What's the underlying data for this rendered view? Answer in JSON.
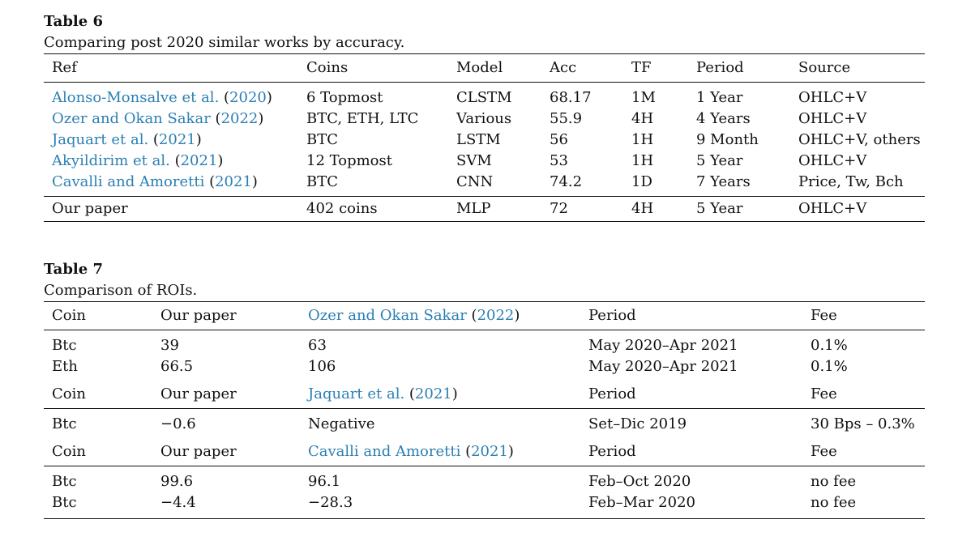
{
  "table6": {
    "label": "Table 6",
    "caption": "Comparing post 2020 similar works by accuracy.",
    "headers": [
      "Ref",
      "Coins",
      "Model",
      "Acc",
      "TF",
      "Period",
      "Source"
    ],
    "rows": [
      {
        "ref_authors": "Alonso-Monsalve et al.",
        "ref_year": "2020",
        "coins": "6 Topmost",
        "model": "CLSTM",
        "acc": "68.17",
        "tf": "1M",
        "period": "1 Year",
        "source": "OHLC+V"
      },
      {
        "ref_authors": "Ozer and Okan Sakar",
        "ref_year": "2022",
        "coins": "BTC, ETH, LTC",
        "model": "Various",
        "acc": "55.9",
        "tf": "4H",
        "period": "4 Years",
        "source": "OHLC+V"
      },
      {
        "ref_authors": "Jaquart et al.",
        "ref_year": "2021",
        "coins": "BTC",
        "model": "LSTM",
        "acc": "56",
        "tf": "1H",
        "period": "9 Month",
        "source": "OHLC+V, others"
      },
      {
        "ref_authors": "Akyildirim et al.",
        "ref_year": "2021",
        "coins": "12 Topmost",
        "model": "SVM",
        "acc": "53",
        "tf": "1H",
        "period": "5 Year",
        "source": "OHLC+V"
      },
      {
        "ref_authors": "Cavalli and Amoretti",
        "ref_year": "2021",
        "coins": "BTC",
        "model": "CNN",
        "acc": "74.2",
        "tf": "1D",
        "period": "7 Years",
        "source": "Price, Tw, Bch"
      }
    ],
    "ours": {
      "ref": "Our paper",
      "coins": "402 coins",
      "model": "MLP",
      "acc": "72",
      "tf": "4H",
      "period": "5 Year",
      "source": "OHLC+V"
    }
  },
  "table7": {
    "label": "Table 7",
    "caption": "Comparison of ROIs.",
    "groups": [
      {
        "header": {
          "coin": "Coin",
          "ours": "Our paper",
          "ref_authors": "Ozer and Okan Sakar",
          "ref_year": "2022",
          "period": "Period",
          "fee": "Fee"
        },
        "rows": [
          {
            "coin": "Btc",
            "ours": "39",
            "ref": "63",
            "period": "May 2020–Apr 2021",
            "fee": "0.1%"
          },
          {
            "coin": "Eth",
            "ours": "66.5",
            "ref": "106",
            "period": "May 2020–Apr 2021",
            "fee": "0.1%"
          }
        ]
      },
      {
        "header": {
          "coin": "Coin",
          "ours": "Our paper",
          "ref_authors": "Jaquart et al.",
          "ref_year": "2021",
          "period": "Period",
          "fee": "Fee"
        },
        "rows": [
          {
            "coin": "Btc",
            "ours": "−0.6",
            "ref": "Negative",
            "period": "Set–Dic 2019",
            "fee": "30 Bps – 0.3%"
          }
        ]
      },
      {
        "header": {
          "coin": "Coin",
          "ours": "Our paper",
          "ref_authors": "Cavalli and Amoretti",
          "ref_year": "2021",
          "period": "Period",
          "fee": "Fee"
        },
        "rows": [
          {
            "coin": "Btc",
            "ours": "99.6",
            "ref": "96.1",
            "period": "Feb–Oct 2020",
            "fee": "no fee"
          },
          {
            "coin": "Btc",
            "ours": "−4.4",
            "ref": "−28.3",
            "period": "Feb–Mar 2020",
            "fee": "no fee"
          }
        ]
      }
    ]
  },
  "colors": {
    "citation": "#2b7fb3",
    "text": "#111111"
  }
}
